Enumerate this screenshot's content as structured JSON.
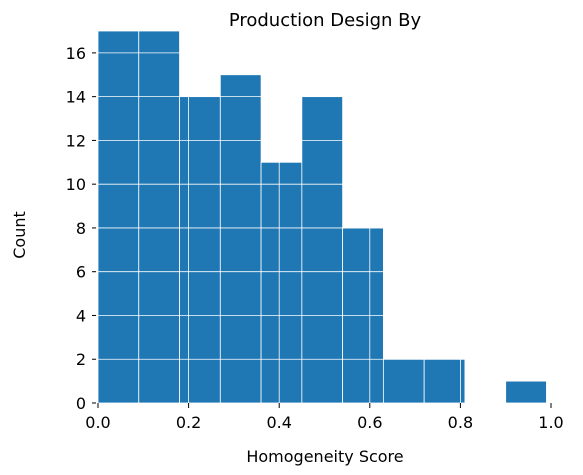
{
  "chart_data": {
    "type": "bar",
    "subtype": "histogram",
    "title": "Production Design By",
    "xlabel": "Homogeneity Score",
    "ylabel": "Count",
    "xlim": [
      0.0,
      1.0
    ],
    "ylim": [
      0,
      17
    ],
    "x_ticks": [
      "0.0",
      "0.2",
      "0.4",
      "0.6",
      "0.8",
      "1.0"
    ],
    "y_ticks": [
      "0",
      "2",
      "4",
      "6",
      "8",
      "10",
      "12",
      "14",
      "16"
    ],
    "bins": [
      {
        "x0": 0.0,
        "x1": 0.09,
        "count": 17
      },
      {
        "x0": 0.09,
        "x1": 0.18,
        "count": 17
      },
      {
        "x0": 0.18,
        "x1": 0.27,
        "count": 14
      },
      {
        "x0": 0.27,
        "x1": 0.36,
        "count": 15
      },
      {
        "x0": 0.36,
        "x1": 0.45,
        "count": 11
      },
      {
        "x0": 0.45,
        "x1": 0.54,
        "count": 14
      },
      {
        "x0": 0.54,
        "x1": 0.63,
        "count": 8
      },
      {
        "x0": 0.63,
        "x1": 0.72,
        "count": 2
      },
      {
        "x0": 0.72,
        "x1": 0.81,
        "count": 2
      },
      {
        "x0": 0.81,
        "x1": 0.9,
        "count": 0
      },
      {
        "x0": 0.9,
        "x1": 0.99,
        "count": 1
      }
    ],
    "grid": true,
    "legend": "none",
    "colors": {
      "bar": "#1f77b4",
      "grid": "#ffffff",
      "axis": "#000000"
    }
  }
}
